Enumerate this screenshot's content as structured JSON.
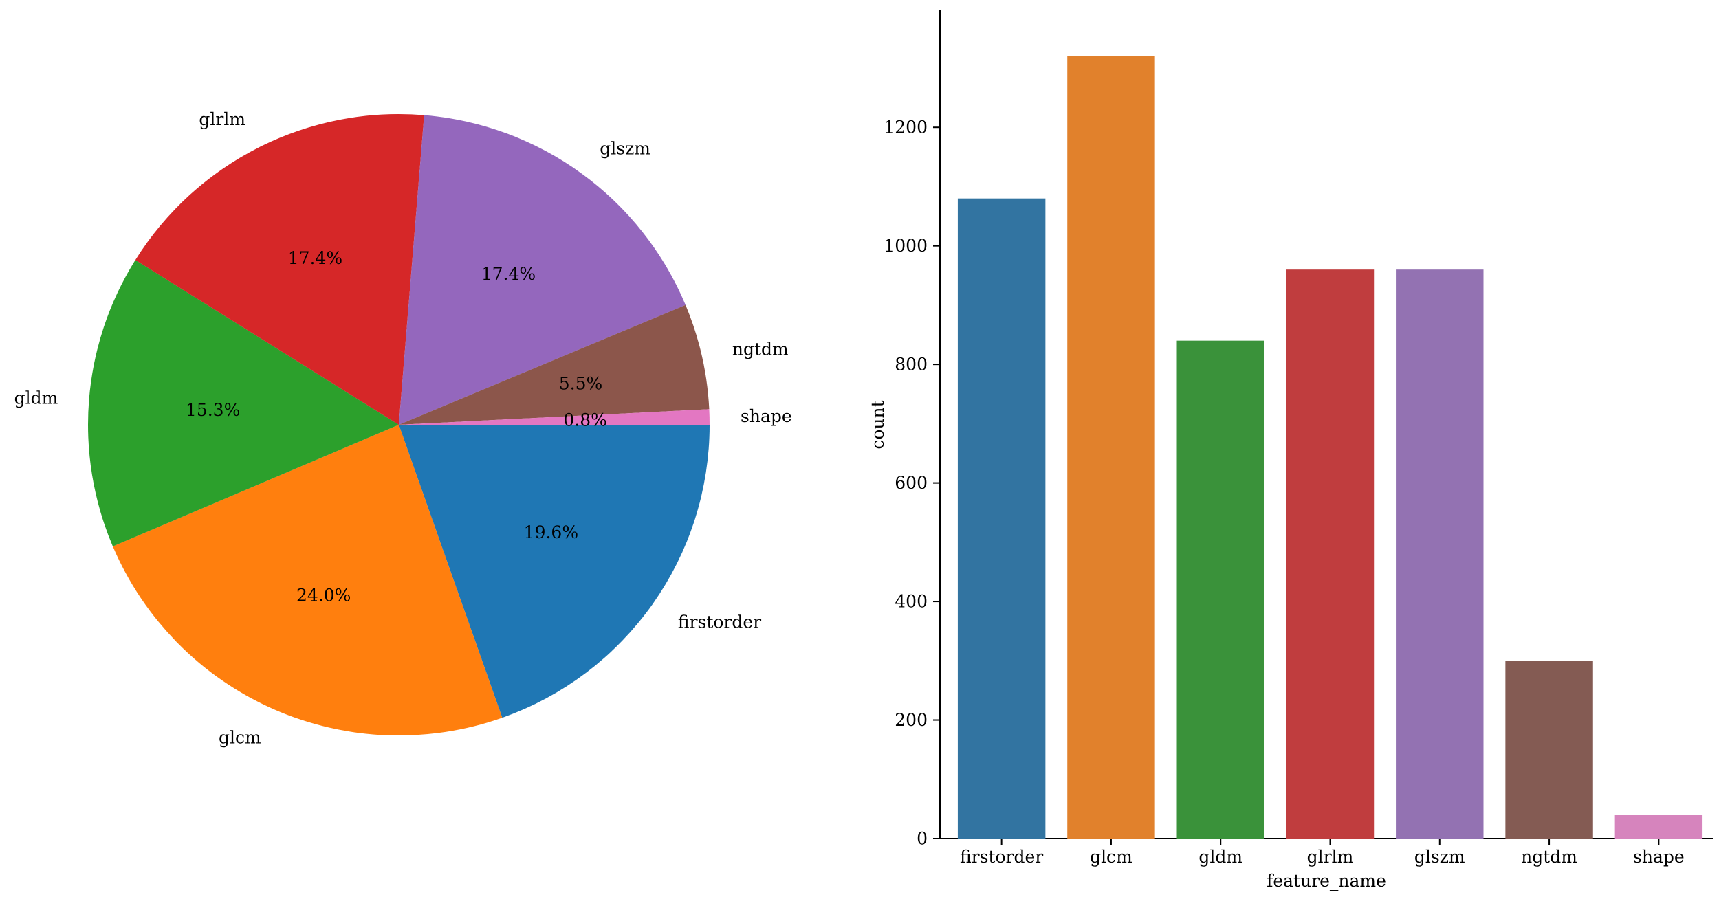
{
  "chart_data": [
    {
      "type": "pie",
      "labels": [
        "firstorder",
        "glcm",
        "gldm",
        "glrlm",
        "glszm",
        "ngtdm",
        "shape"
      ],
      "values": [
        19.6,
        24.0,
        15.3,
        17.4,
        17.4,
        5.5,
        0.8
      ],
      "pct_labels": [
        "19.6%",
        "24.0%",
        "15.3%",
        "17.4%",
        "17.4%",
        "5.5%",
        "0.8%"
      ],
      "colors": [
        "#1f77b4",
        "#ff7f0e",
        "#2ca02c",
        "#d62728",
        "#9467bd",
        "#8c564b",
        "#e377c2"
      ],
      "start_angle_deg": 0,
      "direction": "clockwise"
    },
    {
      "type": "bar",
      "categories": [
        "firstorder",
        "glcm",
        "gldm",
        "glrlm",
        "glszm",
        "ngtdm",
        "shape"
      ],
      "values": [
        1080,
        1320,
        840,
        960,
        960,
        300,
        40
      ],
      "colors": [
        "#3274a1",
        "#e1812c",
        "#3a923a",
        "#c03d3e",
        "#9372b2",
        "#845b53",
        "#d684bd"
      ],
      "xlabel": "feature_name",
      "ylabel": "count",
      "ylim": [
        0,
        1380
      ],
      "yticks": [
        0,
        200,
        400,
        600,
        800,
        1000,
        1200
      ],
      "spines": "left-bottom",
      "grid": false
    }
  ]
}
